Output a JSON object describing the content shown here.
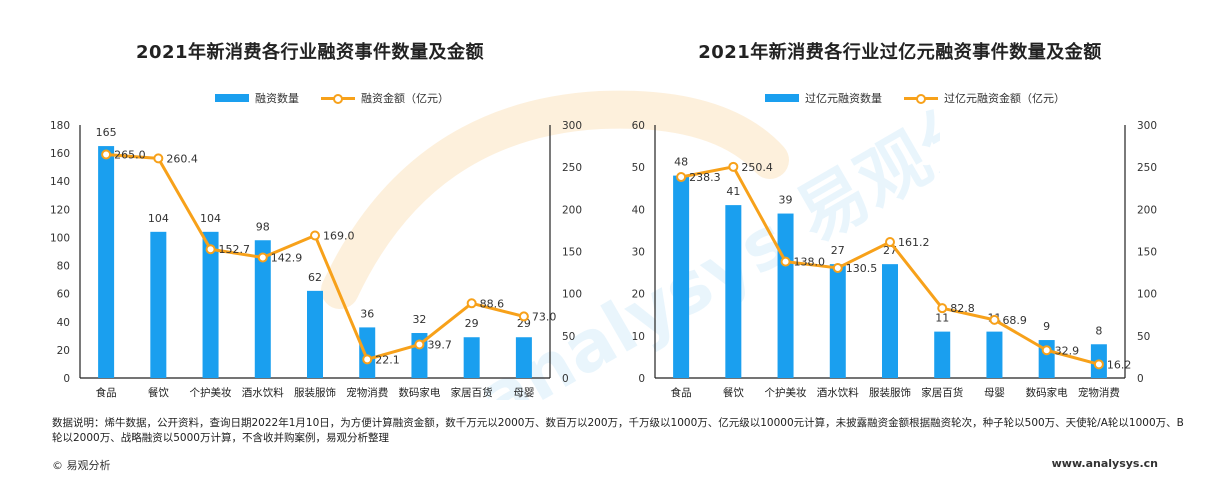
{
  "watermark_text": "analysys 易观分析",
  "note": "数据说明：烯牛数据，公开资料，查询日期2022年1月10日，为方便计算融资金额，数千万元以2000万、数百万以200万，千万级以1000万、亿元级以10000元计算，未披露融资金额根据融资轮次，种子轮以500万、天使轮/A轮以1000万、B轮以2000万、战略融资以5000万计算，不含收并购案例，易观分析整理",
  "footer": {
    "copyright": "© 易观分析",
    "website": "www.analysys.cn"
  },
  "colors": {
    "bar": "#1a9fef",
    "line": "#f7a11a"
  },
  "chart_data": [
    {
      "type": "bar+line",
      "title": "2021年新消费各行业融资事件数量及金额",
      "legend": {
        "bar": "融资数量",
        "line": "融资金额（亿元）"
      },
      "categories": [
        "食品",
        "餐饮",
        "个护美妆",
        "酒水饮料",
        "服装服饰",
        "宠物消费",
        "数码家电",
        "家居百货",
        "母婴"
      ],
      "bar_values": [
        165,
        104,
        104,
        98,
        62,
        36,
        32,
        29,
        29
      ],
      "line_values": [
        265.0,
        260.4,
        152.7,
        142.9,
        169.0,
        22.1,
        39.7,
        88.6,
        73.0
      ],
      "left_axis": {
        "min": 0,
        "max": 180,
        "ticks": [
          0,
          20,
          40,
          60,
          80,
          100,
          120,
          140,
          160,
          180
        ]
      },
      "right_axis": {
        "min": 0,
        "max": 300,
        "ticks": [
          0,
          50,
          100,
          150,
          200,
          250,
          300
        ]
      }
    },
    {
      "type": "bar+line",
      "title": "2021年新消费各行业过亿元融资事件数量及金额",
      "legend": {
        "bar": "过亿元融资数量",
        "line": "过亿元融资金额（亿元）"
      },
      "categories": [
        "食品",
        "餐饮",
        "个护美妆",
        "酒水饮料",
        "服装服饰",
        "家居百货",
        "母婴",
        "数码家电",
        "宠物消费"
      ],
      "bar_values": [
        48,
        41,
        39,
        27,
        27,
        11,
        11,
        9,
        8
      ],
      "line_values": [
        238.3,
        250.4,
        138.0,
        130.5,
        161.2,
        82.8,
        68.9,
        32.9,
        16.2
      ],
      "left_axis": {
        "min": 0,
        "max": 60,
        "ticks": [
          0,
          10,
          20,
          30,
          40,
          50,
          60
        ]
      },
      "right_axis": {
        "min": 0,
        "max": 300,
        "ticks": [
          0,
          50,
          100,
          150,
          200,
          250,
          300
        ]
      }
    }
  ]
}
